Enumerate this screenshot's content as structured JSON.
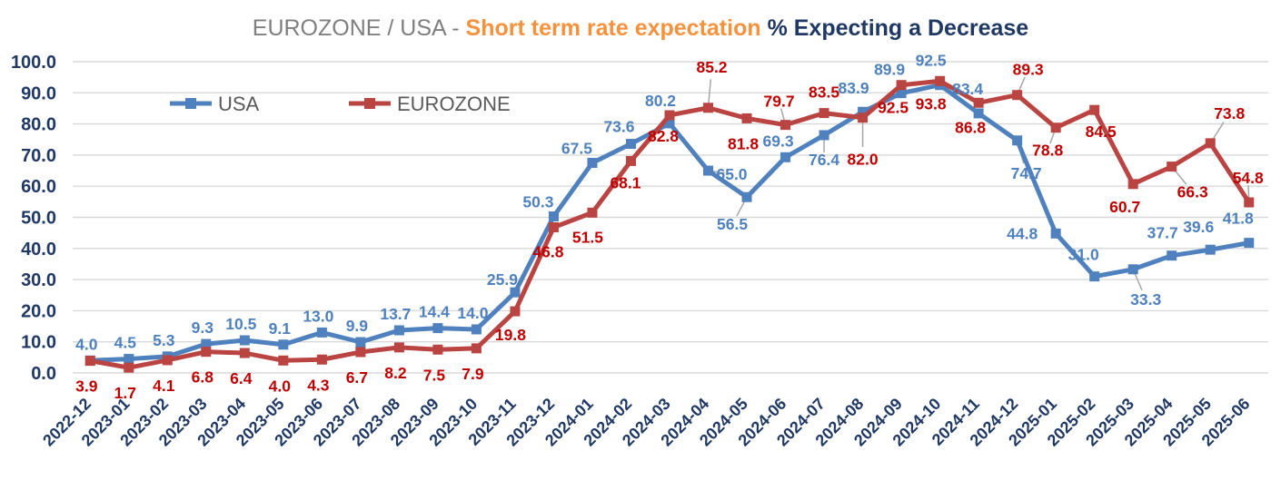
{
  "title": {
    "region": "EUROZONE / USA - ",
    "subject": "Short term rate expectation ",
    "metric": "% Expecting a Decrease"
  },
  "legend": {
    "position": "inside-top-left",
    "items": [
      {
        "label": "USA"
      },
      {
        "label": "EUROZONE"
      }
    ]
  },
  "colors": {
    "usa_line": "#4e81bd",
    "usa_label": "#4e81bd",
    "eurozone_line": "#b94442",
    "eurozone_label": "#c00000",
    "axis_text": "#1f3864",
    "grid": "#d9d9d9",
    "leader": "#a6a6a6",
    "legend_text": "#595959",
    "title_region": "#7f7f7f",
    "title_subject": "#f5923e",
    "title_metric": "#1f3864"
  },
  "chart_data": {
    "type": "line",
    "title": "EUROZONE / USA - Short term rate expectation % Expecting a Decrease",
    "xlabel": "",
    "ylabel": "",
    "grid": true,
    "legend_position": "inside-top-left",
    "ylim": [
      0,
      100
    ],
    "ytick_step": 10,
    "ytick_labels": [
      "0.0",
      "10.0",
      "20.0",
      "30.0",
      "40.0",
      "50.0",
      "60.0",
      "70.0",
      "80.0",
      "90.0",
      "100.0"
    ],
    "categories": [
      "2022-12",
      "2023-01",
      "2023-02",
      "2023-03",
      "2023-04",
      "2023-05",
      "2023-06",
      "2023-07",
      "2023-08",
      "2023-09",
      "2023-10",
      "2023-11",
      "2023-12",
      "2024-01",
      "2024-02",
      "2024-03",
      "2024-04",
      "2024-05",
      "2024-06",
      "2024-07",
      "2024-08",
      "2024-09",
      "2024-10",
      "2024-11",
      "2024-12",
      "2025-01",
      "2025-02",
      "2025-03",
      "2025-04",
      "2025-05",
      "2025-06"
    ],
    "series": [
      {
        "name": "USA",
        "color": "#4e81bd",
        "label_color": "#4e81bd",
        "marker": "square",
        "values": [
          4.0,
          4.5,
          5.3,
          9.3,
          10.5,
          9.1,
          13.0,
          9.9,
          13.7,
          14.4,
          14.0,
          25.9,
          50.3,
          67.5,
          73.6,
          80.2,
          65.0,
          56.5,
          69.3,
          76.4,
          83.9,
          89.9,
          92.5,
          83.4,
          74.7,
          44.8,
          31.0,
          33.3,
          37.7,
          39.6,
          41.8
        ],
        "default_label_offset": [
          -4,
          -18
        ],
        "label_overrides": {
          "11": [
            -14,
            -14
          ],
          "12": [
            -17,
            -16
          ],
          "13": [
            -17,
            -16
          ],
          "14": [
            -13,
            -19
          ],
          "15": [
            -10,
            -25
          ],
          "16": [
            26,
            4,
            1
          ],
          "17": [
            -16,
            30,
            1
          ],
          "18": [
            -8,
            -18
          ],
          "19": [
            0,
            27,
            1
          ],
          "20": [
            -10,
            -26
          ],
          "21": [
            -13,
            -26
          ],
          "22": [
            -10,
            -27
          ],
          "23": [
            -12,
            -27
          ],
          "24": [
            10,
            36,
            1
          ],
          "25": [
            -37,
            0
          ],
          "26": [
            -12,
            -24
          ],
          "27": [
            14,
            33,
            1
          ],
          "28": [
            -10,
            -25
          ],
          "29": [
            -13,
            -25
          ],
          "30": [
            -12,
            -27
          ]
        }
      },
      {
        "name": "EUROZONE",
        "color": "#b94442",
        "label_color": "#c00000",
        "marker": "square",
        "values": [
          3.9,
          1.7,
          4.1,
          6.8,
          6.4,
          4.0,
          4.3,
          6.7,
          8.2,
          7.5,
          7.9,
          19.8,
          46.8,
          51.5,
          68.1,
          82.8,
          85.2,
          81.8,
          79.7,
          83.5,
          82.0,
          92.5,
          93.8,
          86.8,
          89.3,
          78.8,
          84.5,
          60.7,
          66.3,
          73.8,
          54.8
        ],
        "default_label_offset": [
          -4,
          28
        ],
        "label_overrides": {
          "11": [
            -5,
            26
          ],
          "12": [
            -6,
            27
          ],
          "13": [
            -5,
            27
          ],
          "14": [
            -6,
            24
          ],
          "15": [
            -7,
            23
          ],
          "16": [
            4,
            -45,
            1
          ],
          "18": [
            -7,
            -26,
            1
          ],
          "19": [
            0,
            -23
          ],
          "20": [
            0,
            46,
            1
          ],
          "21": [
            -9,
            25
          ],
          "22": [
            -10,
            25
          ],
          "23": [
            -9,
            27
          ],
          "24": [
            12,
            -28,
            1
          ],
          "25": [
            -9,
            25,
            1
          ],
          "26": [
            7,
            24
          ],
          "27": [
            -9,
            25
          ],
          "28": [
            23,
            28,
            1
          ],
          "29": [
            21,
            -33,
            1
          ],
          "30": [
            -1,
            -27,
            1
          ]
        }
      }
    ]
  }
}
